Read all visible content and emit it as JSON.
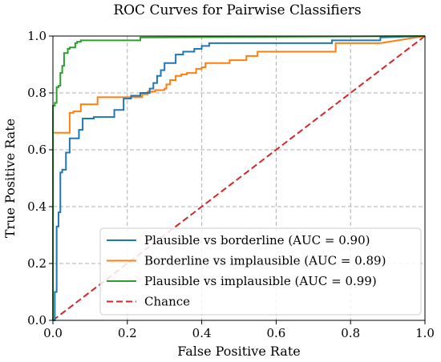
{
  "chart_data": {
    "type": "line",
    "title": "ROC Curves for Pairwise Classifiers",
    "xlabel": "False Positive Rate",
    "ylabel": "True Positive Rate",
    "xlim": [
      0,
      1
    ],
    "ylim": [
      0,
      1
    ],
    "grid": true,
    "legend_position": "lower-right",
    "x_ticks": [
      "0.0",
      "0.2",
      "0.4",
      "0.6",
      "0.8",
      "1.0"
    ],
    "y_ticks": [
      "0.0",
      "0.2",
      "0.4",
      "0.6",
      "0.8",
      "1.0"
    ],
    "series": [
      {
        "name": "Plausible vs borderline (AUC = 0.90)",
        "color": "#1f77b4",
        "dash": "solid",
        "x": [
          0,
          0.005,
          0.005,
          0.01,
          0.01,
          0.015,
          0.015,
          0.02,
          0.02,
          0.025,
          0.025,
          0.035,
          0.035,
          0.045,
          0.045,
          0.055,
          0.055,
          0.07,
          0.07,
          0.08,
          0.08,
          0.11,
          0.11,
          0.165,
          0.165,
          0.19,
          0.19,
          0.21,
          0.21,
          0.235,
          0.235,
          0.26,
          0.26,
          0.27,
          0.27,
          0.28,
          0.28,
          0.29,
          0.29,
          0.3,
          0.3,
          0.33,
          0.33,
          0.35,
          0.35,
          0.38,
          0.38,
          0.4,
          0.4,
          0.42,
          0.42,
          0.75,
          0.75,
          0.88,
          0.88,
          1.0
        ],
        "y": [
          0,
          0,
          0.1,
          0.1,
          0.33,
          0.33,
          0.38,
          0.38,
          0.52,
          0.52,
          0.53,
          0.53,
          0.59,
          0.59,
          0.64,
          0.64,
          0.64,
          0.64,
          0.67,
          0.67,
          0.71,
          0.71,
          0.715,
          0.715,
          0.74,
          0.74,
          0.78,
          0.78,
          0.79,
          0.79,
          0.8,
          0.8,
          0.815,
          0.815,
          0.835,
          0.835,
          0.86,
          0.86,
          0.88,
          0.88,
          0.905,
          0.905,
          0.935,
          0.935,
          0.945,
          0.945,
          0.955,
          0.955,
          0.965,
          0.965,
          0.975,
          0.975,
          0.985,
          0.985,
          0.995,
          1.0
        ]
      },
      {
        "name": "Borderline vs implausible (AUC = 0.89)",
        "color": "#ff7f0e",
        "dash": "solid",
        "x": [
          0,
          0,
          0.045,
          0.045,
          0.055,
          0.055,
          0.075,
          0.075,
          0.12,
          0.12,
          0.24,
          0.24,
          0.255,
          0.255,
          0.275,
          0.275,
          0.3,
          0.3,
          0.305,
          0.305,
          0.315,
          0.315,
          0.33,
          0.33,
          0.345,
          0.345,
          0.36,
          0.36,
          0.385,
          0.385,
          0.4,
          0.4,
          0.41,
          0.41,
          0.475,
          0.475,
          0.52,
          0.52,
          0.55,
          0.55,
          0.76,
          0.76,
          0.88,
          1.0
        ],
        "y": [
          0,
          0.66,
          0.66,
          0.73,
          0.73,
          0.735,
          0.735,
          0.76,
          0.76,
          0.785,
          0.785,
          0.795,
          0.795,
          0.805,
          0.805,
          0.81,
          0.81,
          0.815,
          0.815,
          0.83,
          0.83,
          0.845,
          0.845,
          0.86,
          0.86,
          0.865,
          0.865,
          0.87,
          0.87,
          0.885,
          0.885,
          0.89,
          0.89,
          0.905,
          0.905,
          0.915,
          0.915,
          0.93,
          0.93,
          0.945,
          0.945,
          0.975,
          0.975,
          1.0
        ]
      },
      {
        "name": "Plausible vs implausible (AUC = 0.99)",
        "color": "#2ca02c",
        "dash": "solid",
        "x": [
          0,
          0,
          0.005,
          0.005,
          0.01,
          0.01,
          0.015,
          0.015,
          0.02,
          0.02,
          0.025,
          0.025,
          0.03,
          0.03,
          0.04,
          0.04,
          0.045,
          0.045,
          0.06,
          0.06,
          0.065,
          0.065,
          0.075,
          0.075,
          0.235,
          0.235,
          1.0
        ],
        "y": [
          0,
          0.755,
          0.755,
          0.765,
          0.765,
          0.82,
          0.82,
          0.825,
          0.825,
          0.87,
          0.87,
          0.895,
          0.895,
          0.94,
          0.94,
          0.955,
          0.955,
          0.96,
          0.96,
          0.975,
          0.975,
          0.98,
          0.98,
          0.985,
          0.985,
          0.995,
          1.0
        ]
      },
      {
        "name": "Chance",
        "color": "#d62728",
        "dash": "dashed",
        "x": [
          0,
          1
        ],
        "y": [
          0,
          1
        ]
      }
    ]
  }
}
